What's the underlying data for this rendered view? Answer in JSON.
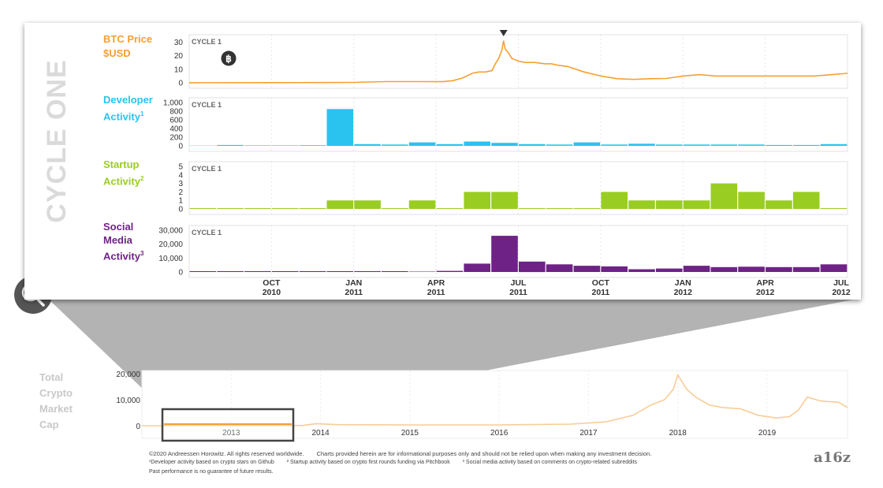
{
  "vertical_title": "CYCLE ONE",
  "cycle_label": "CYCLE 1",
  "colors": {
    "price": "#F5A031",
    "developer": "#2AC3EF",
    "startup": "#9ACD22",
    "social": "#6E2286",
    "market": "#F8CC97",
    "title_gray": "#DADADA"
  },
  "time_axis": [
    {
      "m": "OCT",
      "y": "2010",
      "t": 2010.75
    },
    {
      "m": "JAN",
      "y": "2011",
      "t": 2011.0
    },
    {
      "m": "APR",
      "y": "2011",
      "t": 2011.25
    },
    {
      "m": "JUL",
      "y": "2011",
      "t": 2011.5
    },
    {
      "m": "OCT",
      "y": "2011",
      "t": 2011.75
    },
    {
      "m": "JAN",
      "y": "2012",
      "t": 2012.0
    },
    {
      "m": "APR",
      "y": "2012",
      "t": 2012.25
    },
    {
      "m": "JUL",
      "y": "2012",
      "t": 2012.5
    }
  ],
  "chart_data": [
    {
      "type": "line",
      "title_line1": "BTC Price",
      "title_line2": "$USD",
      "icon": "bitcoin-icon",
      "ylim": [
        0,
        32
      ],
      "yticks": [
        0,
        10,
        20,
        30
      ],
      "x": [
        2010.5,
        2010.75,
        2010.9,
        2011.0,
        2011.1,
        2011.2,
        2011.27,
        2011.3,
        2011.33,
        2011.36,
        2011.38,
        2011.4,
        2011.42,
        2011.43,
        2011.44,
        2011.45,
        2011.455,
        2011.46,
        2011.47,
        2011.48,
        2011.5,
        2011.52,
        2011.55,
        2011.58,
        2011.6,
        2011.62,
        2011.65,
        2011.7,
        2011.75,
        2011.8,
        2011.85,
        2011.9,
        2011.95,
        2012.0,
        2012.05,
        2012.1,
        2012.15,
        2012.2,
        2012.25,
        2012.3,
        2012.35,
        2012.4,
        2012.45,
        2012.5
      ],
      "values": [
        0.07,
        0.1,
        0.2,
        0.3,
        0.9,
        0.9,
        0.8,
        1.5,
        3.5,
        7,
        8,
        8,
        9,
        14,
        18,
        24,
        31,
        25,
        22,
        18,
        16,
        15,
        15,
        14,
        14,
        13,
        12,
        8,
        5,
        3,
        2.5,
        3,
        3.2,
        5,
        6,
        5,
        5,
        5,
        5,
        5,
        5,
        5,
        6,
        7
      ]
    },
    {
      "type": "bar",
      "title_line1": "Developer",
      "title_line2": "Activity",
      "footnote_mark": "1",
      "ylim": [
        0,
        1000
      ],
      "yticks": [
        0,
        200,
        400,
        600,
        800,
        1000
      ],
      "ytick_labels": [
        "0",
        "200",
        "400",
        "600",
        "800",
        "1,000"
      ],
      "values": [
        5,
        20,
        10,
        10,
        15,
        850,
        40,
        30,
        80,
        40,
        100,
        70,
        40,
        30,
        80,
        30,
        50,
        30,
        30,
        30,
        30,
        20,
        20,
        40
      ]
    },
    {
      "type": "bar",
      "title_line1": "Startup",
      "title_line2": "Activity",
      "footnote_mark": "2",
      "ylim": [
        0,
        5
      ],
      "yticks": [
        0,
        1,
        2,
        3,
        4,
        5
      ],
      "ytick_labels": [
        "0",
        "1",
        "2",
        "3",
        "4",
        "5"
      ],
      "values": [
        0,
        0,
        0,
        0,
        0,
        1,
        1,
        0,
        1,
        0,
        2,
        2,
        0,
        0,
        0,
        2,
        1,
        1,
        1,
        3,
        2,
        1,
        2,
        0
      ]
    },
    {
      "type": "bar",
      "title_line1": "Social",
      "title_line2": "Media",
      "title_line3": "Activity",
      "footnote_mark": "3",
      "ylim": [
        0,
        30000
      ],
      "yticks": [
        0,
        10000,
        20000,
        30000
      ],
      "ytick_labels": [
        "0",
        "10,000",
        "20,000",
        "30,000"
      ],
      "values": [
        0,
        0,
        0,
        0,
        0,
        0,
        0,
        0,
        300,
        800,
        6000,
        26000,
        7500,
        5500,
        4500,
        4000,
        2000,
        2500,
        4500,
        3500,
        3800,
        3500,
        3500,
        5500
      ]
    },
    {
      "type": "area",
      "title_line1": "Total",
      "title_line2": "Crypto",
      "title_line3": "Market",
      "title_line4": "Cap",
      "ylim": [
        0,
        20000
      ],
      "yticks": [
        0,
        10000,
        20000
      ],
      "ytick_labels": [
        "0",
        "10,000",
        "20,000"
      ],
      "xtick_labels": [
        "2013",
        "2014",
        "2015",
        "2016",
        "2017",
        "2018",
        "2019"
      ],
      "xticks": [
        2013,
        2014,
        2015,
        2016,
        2017,
        2018,
        2019
      ],
      "x": [
        2012.0,
        2013.0,
        2013.8,
        2013.95,
        2014.2,
        2015.0,
        2016.0,
        2016.8,
        2017.2,
        2017.5,
        2017.7,
        2017.85,
        2017.95,
        2018.0,
        2018.1,
        2018.2,
        2018.35,
        2018.5,
        2018.7,
        2018.9,
        2019.1,
        2019.25,
        2019.35,
        2019.45,
        2019.6,
        2019.8,
        2019.9
      ],
      "values": [
        0,
        50,
        100,
        800,
        400,
        300,
        300,
        600,
        1500,
        4000,
        8000,
        10000,
        14000,
        19500,
        14000,
        11000,
        8000,
        7000,
        6500,
        4000,
        3000,
        3500,
        6000,
        11000,
        9500,
        9000,
        7000
      ],
      "highlight_x": [
        2012.0,
        2012.5
      ]
    }
  ],
  "footer": {
    "copyright": "©2020 Andreessen Horowitz. All rights reserved worldwide.",
    "disclaimer": "Charts provided herein are for informational purposes only and should not be relied upon when making any investment decision.",
    "note1": "¹Developer activity based on crypto stars on Github",
    "note2": "² Startup activity based on crypto first rounds funding via Pitchbook",
    "note3": "³ Social media activity based on comments on crypto-related subreddits",
    "past": "Past performance is no guarantee of future results.",
    "logo": "a16z"
  }
}
